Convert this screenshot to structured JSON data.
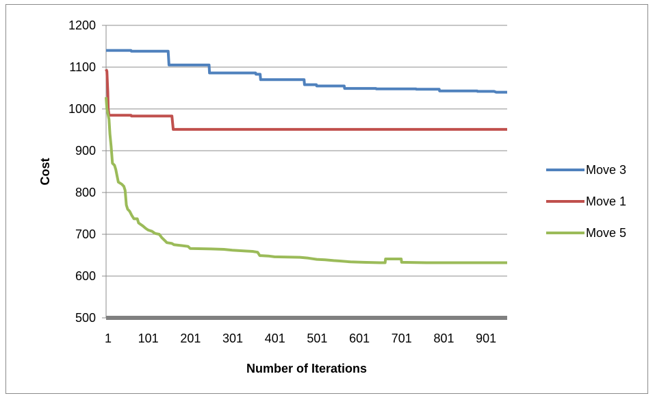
{
  "chart_data": {
    "type": "line",
    "title": "",
    "xlabel": "Number of Iterations",
    "ylabel": "Cost",
    "ylim": [
      500,
      1200
    ],
    "yticks": [
      500,
      600,
      700,
      800,
      900,
      1000,
      1100,
      1200
    ],
    "xlim": [
      1,
      951
    ],
    "xticks": [
      1,
      101,
      201,
      301,
      401,
      501,
      601,
      701,
      801,
      901
    ],
    "grid": "horizontal",
    "legend_position": "right",
    "series": [
      {
        "name": "Move 3",
        "color": "#4f81bd",
        "points": [
          [
            1,
            1140
          ],
          [
            60,
            1140
          ],
          [
            61,
            1138
          ],
          [
            148,
            1138
          ],
          [
            150,
            1105
          ],
          [
            245,
            1105
          ],
          [
            246,
            1086
          ],
          [
            355,
            1086
          ],
          [
            356,
            1083
          ],
          [
            366,
            1083
          ],
          [
            367,
            1070
          ],
          [
            470,
            1070
          ],
          [
            471,
            1058
          ],
          [
            499,
            1058
          ],
          [
            500,
            1055
          ],
          [
            565,
            1055
          ],
          [
            566,
            1049
          ],
          [
            640,
            1049
          ],
          [
            641,
            1048
          ],
          [
            735,
            1048
          ],
          [
            736,
            1047
          ],
          [
            790,
            1047
          ],
          [
            791,
            1043
          ],
          [
            880,
            1043
          ],
          [
            881,
            1042
          ],
          [
            920,
            1042
          ],
          [
            925,
            1040
          ],
          [
            951,
            1040
          ]
        ]
      },
      {
        "name": "Move 1",
        "color": "#c0504d",
        "points": [
          [
            1,
            1095
          ],
          [
            3,
            1090
          ],
          [
            5,
            1040
          ],
          [
            6,
            1000
          ],
          [
            8,
            985
          ],
          [
            60,
            985
          ],
          [
            61,
            983
          ],
          [
            157,
            983
          ],
          [
            160,
            951
          ],
          [
            951,
            951
          ]
        ]
      },
      {
        "name": "Move 5",
        "color": "#9bbb59",
        "points": [
          [
            1,
            1028
          ],
          [
            3,
            1000
          ],
          [
            5,
            990
          ],
          [
            8,
            975
          ],
          [
            10,
            940
          ],
          [
            13,
            910
          ],
          [
            16,
            870
          ],
          [
            21,
            865
          ],
          [
            24,
            855
          ],
          [
            27,
            840
          ],
          [
            30,
            825
          ],
          [
            38,
            820
          ],
          [
            43,
            815
          ],
          [
            46,
            805
          ],
          [
            49,
            770
          ],
          [
            52,
            760
          ],
          [
            57,
            755
          ],
          [
            62,
            745
          ],
          [
            67,
            737
          ],
          [
            75,
            737
          ],
          [
            78,
            727
          ],
          [
            88,
            720
          ],
          [
            95,
            714
          ],
          [
            101,
            710
          ],
          [
            110,
            707
          ],
          [
            117,
            702
          ],
          [
            127,
            700
          ],
          [
            133,
            692
          ],
          [
            140,
            685
          ],
          [
            145,
            680
          ],
          [
            157,
            678
          ],
          [
            162,
            675
          ],
          [
            180,
            673
          ],
          [
            188,
            672
          ],
          [
            195,
            671
          ],
          [
            200,
            666
          ],
          [
            250,
            665
          ],
          [
            280,
            664
          ],
          [
            300,
            662
          ],
          [
            330,
            660
          ],
          [
            348,
            659
          ],
          [
            360,
            657
          ],
          [
            365,
            649
          ],
          [
            385,
            648
          ],
          [
            400,
            646
          ],
          [
            460,
            645
          ],
          [
            480,
            643
          ],
          [
            500,
            640
          ],
          [
            520,
            639
          ],
          [
            540,
            637
          ],
          [
            555,
            636
          ],
          [
            580,
            634
          ],
          [
            610,
            633
          ],
          [
            650,
            632
          ],
          [
            662,
            632
          ],
          [
            663,
            641
          ],
          [
            700,
            641
          ],
          [
            701,
            633
          ],
          [
            760,
            632
          ],
          [
            951,
            632
          ]
        ]
      }
    ]
  }
}
